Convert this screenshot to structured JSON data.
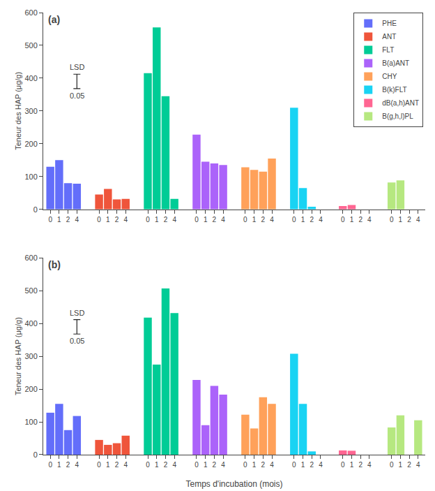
{
  "chart_data": [
    {
      "type": "bar",
      "title": "(a)",
      "categories": [
        "0",
        "1",
        "2",
        "4"
      ],
      "series": [
        {
          "name": "PHE",
          "values": [
            130,
            150,
            80,
            78
          ]
        },
        {
          "name": "ANT",
          "values": [
            45,
            62,
            30,
            32
          ]
        },
        {
          "name": "FLT",
          "values": [
            415,
            555,
            345,
            32
          ]
        },
        {
          "name": "B(a)ANT",
          "values": [
            228,
            145,
            140,
            135
          ]
        },
        {
          "name": "CHY",
          "values": [
            128,
            120,
            115,
            155
          ]
        },
        {
          "name": "B(k)FLT",
          "values": [
            310,
            65,
            8,
            0
          ]
        },
        {
          "name": "dB(a,h)ANT",
          "values": [
            10,
            13,
            0,
            0
          ]
        },
        {
          "name": "B(g,h,l)PL",
          "values": [
            82,
            88,
            0,
            0
          ]
        }
      ],
      "ylim": [
        0,
        600
      ],
      "yticks": [
        0,
        100,
        200,
        300,
        400,
        500,
        600
      ],
      "ylabel": "Teneur des HAP (μg/g)",
      "annotations": [
        "LSD",
        "0.05"
      ],
      "lsd": {
        "value": 390,
        "error": 22
      },
      "grid": false,
      "legend": "upper right"
    },
    {
      "type": "bar",
      "title": "(b)",
      "categories": [
        "0",
        "1",
        "2",
        "4"
      ],
      "series": [
        {
          "name": "PHE",
          "values": [
            128,
            155,
            75,
            118
          ]
        },
        {
          "name": "ANT",
          "values": [
            45,
            30,
            35,
            58
          ]
        },
        {
          "name": "FLT",
          "values": [
            418,
            275,
            507,
            432
          ]
        },
        {
          "name": "B(a)ANT",
          "values": [
            228,
            90,
            210,
            183
          ]
        },
        {
          "name": "CHY",
          "values": [
            122,
            80,
            175,
            155
          ]
        },
        {
          "name": "B(k)FLT",
          "values": [
            308,
            155,
            10,
            0
          ]
        },
        {
          "name": "dB(a,h)ANT",
          "values": [
            13,
            12,
            0,
            0
          ]
        },
        {
          "name": "B(g,h,l)PL",
          "values": [
            83,
            120,
            0,
            105
          ]
        }
      ],
      "ylim": [
        0,
        600
      ],
      "yticks": [
        0,
        100,
        200,
        300,
        400,
        500,
        600
      ],
      "ylabel": "Teneur des HAP (μg/g)",
      "xlabel": "Temps d'incubation (mois)",
      "annotations": [
        "LSD",
        "0.05"
      ],
      "lsd": {
        "value": 390,
        "error": 22
      },
      "grid": false
    }
  ]
}
